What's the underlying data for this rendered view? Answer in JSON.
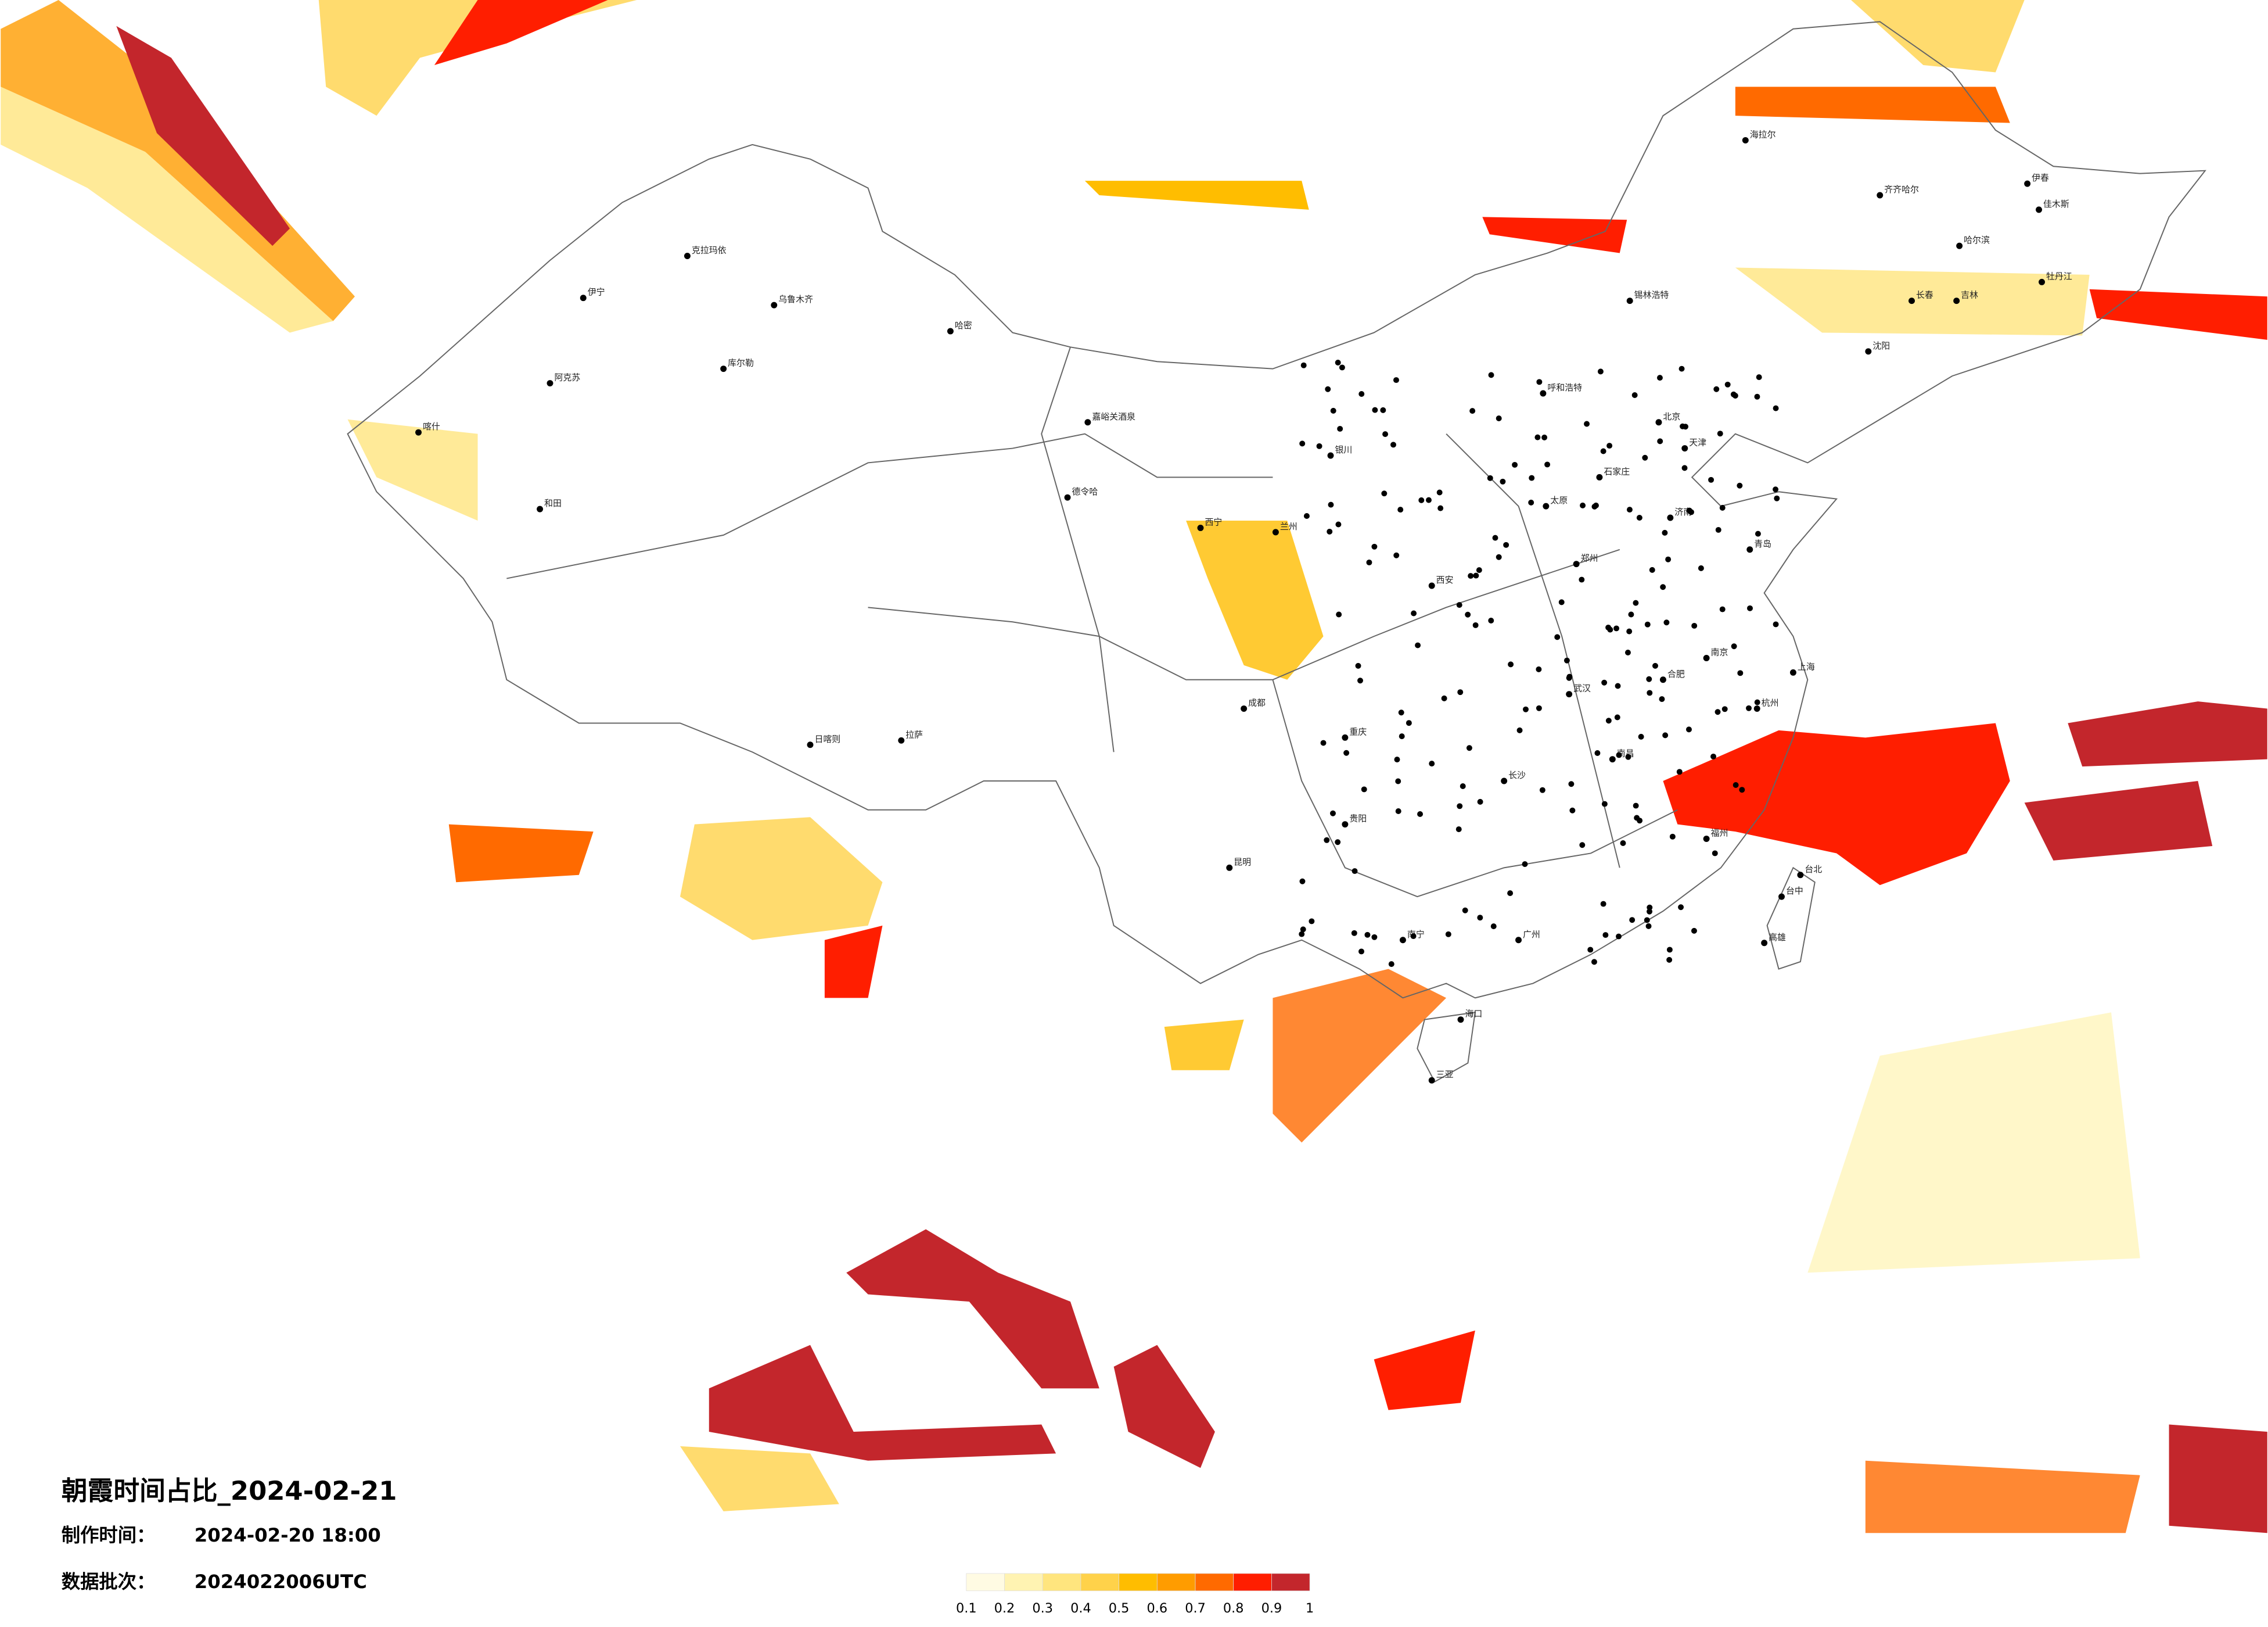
{
  "header": {
    "title": "朝霞时间占比_2024-02-21",
    "made_label": "制作时间：",
    "made_value": "2024-02-20 18:00",
    "batch_label": "数据批次：",
    "batch_value": "2024022006UTC"
  },
  "legend": {
    "colors": [
      "#fffbe3",
      "#fff3b2",
      "#ffe57e",
      "#ffd24a",
      "#ffbd00",
      "#ff9c00",
      "#ff6a00",
      "#ff1e00",
      "#c3262c"
    ],
    "ticks": [
      0.1,
      0.2,
      0.3,
      0.4,
      0.5,
      0.6,
      0.7,
      0.8,
      0.9,
      1
    ]
  },
  "cities": [
    "海拉尔",
    "齐齐哈尔",
    "哈尔滨",
    "长春",
    "吉林",
    "沈阳",
    "北京",
    "天津",
    "呼和浩特",
    "锡林浩特",
    "石家庄",
    "太原",
    "济南",
    "青岛",
    "郑州",
    "西安",
    "兰州",
    "西宁",
    "银川",
    "拉萨",
    "日喀则",
    "成都",
    "重庆",
    "贵阳",
    "昆明",
    "南宁",
    "广州",
    "海口",
    "三亚",
    "长沙",
    "武汉",
    "南昌",
    "福州",
    "杭州",
    "上海",
    "南京",
    "合肥",
    "台北",
    "台中",
    "高雄",
    "伊春",
    "佳木斯",
    "牡丹江",
    "克拉玛依",
    "乌鲁木齐",
    "哈密",
    "伊宁",
    "阿克苏",
    "喀什",
    "和田",
    "库尔勒",
    "德令哈",
    "嘉峪关酒泉"
  ]
}
